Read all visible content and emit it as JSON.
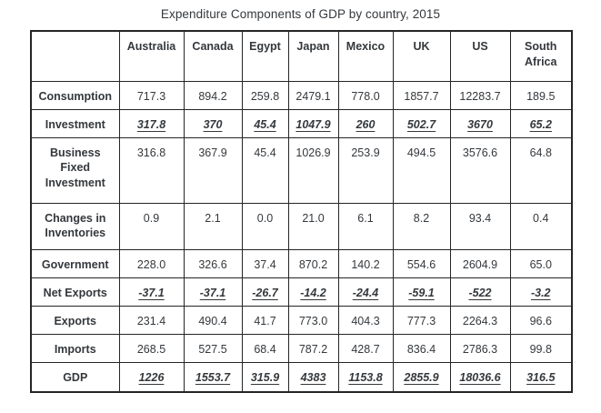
{
  "page_title": "Expenditure Components of GDP by country, 2015",
  "colors": {
    "text": "#34383c",
    "border": "#232527",
    "background": "#ffffff"
  },
  "chart_data": {
    "type": "table",
    "title": "Expenditure Components of GDP by country, 2015",
    "columns": [
      "",
      "Australia",
      "Canada",
      "Egypt",
      "Japan",
      "Mexico",
      "UK",
      "US",
      "South Africa"
    ],
    "rows": [
      {
        "label": "Consumption",
        "emphasis": false,
        "values": [
          "717.3",
          "894.2",
          "259.8",
          "2479.1",
          "778.0",
          "1857.7",
          "12283.7",
          "189.5"
        ]
      },
      {
        "label": "Investment",
        "emphasis": true,
        "values": [
          "317.8",
          "370",
          "45.4",
          "1047.9",
          "260",
          "502.7",
          "3670",
          "65.2"
        ]
      },
      {
        "label": "Business Fixed Investment",
        "emphasis": false,
        "values": [
          "316.8",
          "367.9",
          "45.4",
          "1026.9",
          "253.9",
          "494.5",
          "3576.6",
          "64.8"
        ]
      },
      {
        "label": "Changes in Inventories",
        "emphasis": false,
        "values": [
          "0.9",
          "2.1",
          "0.0",
          "21.0",
          "6.1",
          "8.2",
          "93.4",
          "0.4"
        ]
      },
      {
        "label": "Government",
        "emphasis": false,
        "values": [
          "228.0",
          "326.6",
          "37.4",
          "870.2",
          "140.2",
          "554.6",
          "2604.9",
          "65.0"
        ]
      },
      {
        "label": "Net Exports",
        "emphasis": true,
        "values": [
          "-37.1",
          "-37.1",
          "-26.7",
          "-14.2",
          "-24.4",
          "-59.1",
          "-522",
          "-3.2"
        ]
      },
      {
        "label": "Exports",
        "emphasis": false,
        "values": [
          "231.4",
          "490.4",
          "41.7",
          "773.0",
          "404.3",
          "777.3",
          "2264.3",
          "96.6"
        ]
      },
      {
        "label": "Imports",
        "emphasis": false,
        "values": [
          "268.5",
          "527.5",
          "68.4",
          "787.2",
          "428.7",
          "836.4",
          "2786.3",
          "99.8"
        ]
      },
      {
        "label": "GDP",
        "emphasis": true,
        "values": [
          "1226",
          "1553.7",
          "315.9",
          "4383",
          "1153.8",
          "2855.9",
          "18036.6",
          "316.5"
        ]
      }
    ]
  }
}
